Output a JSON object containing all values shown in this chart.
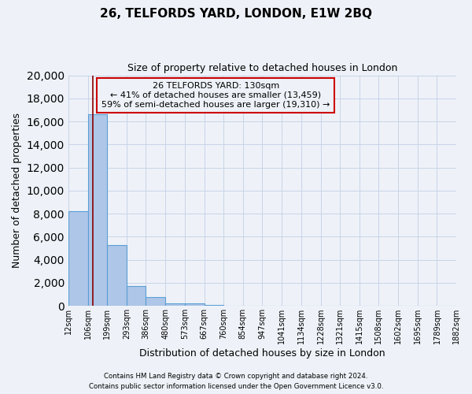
{
  "title": "26, TELFORDS YARD, LONDON, E1W 2BQ",
  "subtitle": "Size of property relative to detached houses in London",
  "xlabel": "Distribution of detached houses by size in London",
  "ylabel": "Number of detached properties",
  "bar_values": [
    8200,
    16600,
    5300,
    1750,
    750,
    250,
    200,
    100,
    0,
    0,
    0,
    0,
    0,
    0,
    0,
    0,
    0,
    0,
    0,
    0
  ],
  "bin_edges": [
    12,
    106,
    199,
    293,
    386,
    480,
    573,
    667,
    760,
    854,
    947,
    1041,
    1134,
    1228,
    1321,
    1415,
    1508,
    1602,
    1695,
    1789,
    1882
  ],
  "tick_labels": [
    "12sqm",
    "106sqm",
    "199sqm",
    "293sqm",
    "386sqm",
    "480sqm",
    "573sqm",
    "667sqm",
    "760sqm",
    "854sqm",
    "947sqm",
    "1041sqm",
    "1134sqm",
    "1228sqm",
    "1321sqm",
    "1415sqm",
    "1508sqm",
    "1602sqm",
    "1695sqm",
    "1789sqm",
    "1882sqm"
  ],
  "bar_color": "#aec6e8",
  "bar_edgecolor": "#5a9fd4",
  "bar_linewidth": 0.8,
  "ylim": [
    0,
    20000
  ],
  "yticks": [
    0,
    2000,
    4000,
    6000,
    8000,
    10000,
    12000,
    14000,
    16000,
    18000,
    20000
  ],
  "property_size": 130,
  "property_label": "26 TELFORDS YARD: 130sqm",
  "pct_smaller": 41,
  "count_smaller": 13459,
  "pct_larger": 59,
  "count_larger": 19310,
  "vline_color": "#8b0000",
  "annotation_box_edgecolor": "#cc0000",
  "background_color": "#eef2f8",
  "grid_color": "#c8d4e8",
  "footer_line1": "Contains HM Land Registry data © Crown copyright and database right 2024.",
  "footer_line2": "Contains public sector information licensed under the Open Government Licence v3.0."
}
